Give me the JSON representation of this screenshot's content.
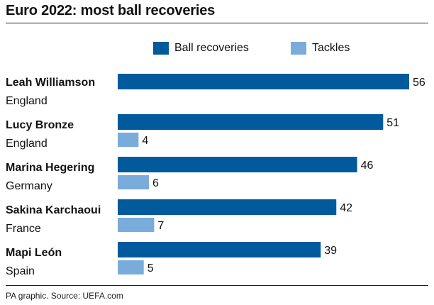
{
  "colors": {
    "recoveries": "#005a9c",
    "tackles": "#79acdb"
  },
  "chart_data": {
    "type": "bar",
    "orientation": "horizontal",
    "title": "Euro 2022: most ball recoveries",
    "categories": [
      {
        "name": "Leah Williamson",
        "country": "England"
      },
      {
        "name": "Lucy Bronze",
        "country": "England"
      },
      {
        "name": "Marina Hegering",
        "country": "Germany"
      },
      {
        "name": "Sakina Karchaoui",
        "country": "France"
      },
      {
        "name": "Mapi León",
        "country": "Spain"
      }
    ],
    "series": [
      {
        "name": "Ball recoveries",
        "values": [
          56,
          51,
          46,
          42,
          39
        ]
      },
      {
        "name": "Tackles",
        "values": [
          null,
          4,
          6,
          7,
          5
        ]
      }
    ],
    "xlim": [
      0,
      56
    ],
    "legend": "top",
    "grid": false,
    "source": "PA graphic. Source: UEFA.com"
  }
}
